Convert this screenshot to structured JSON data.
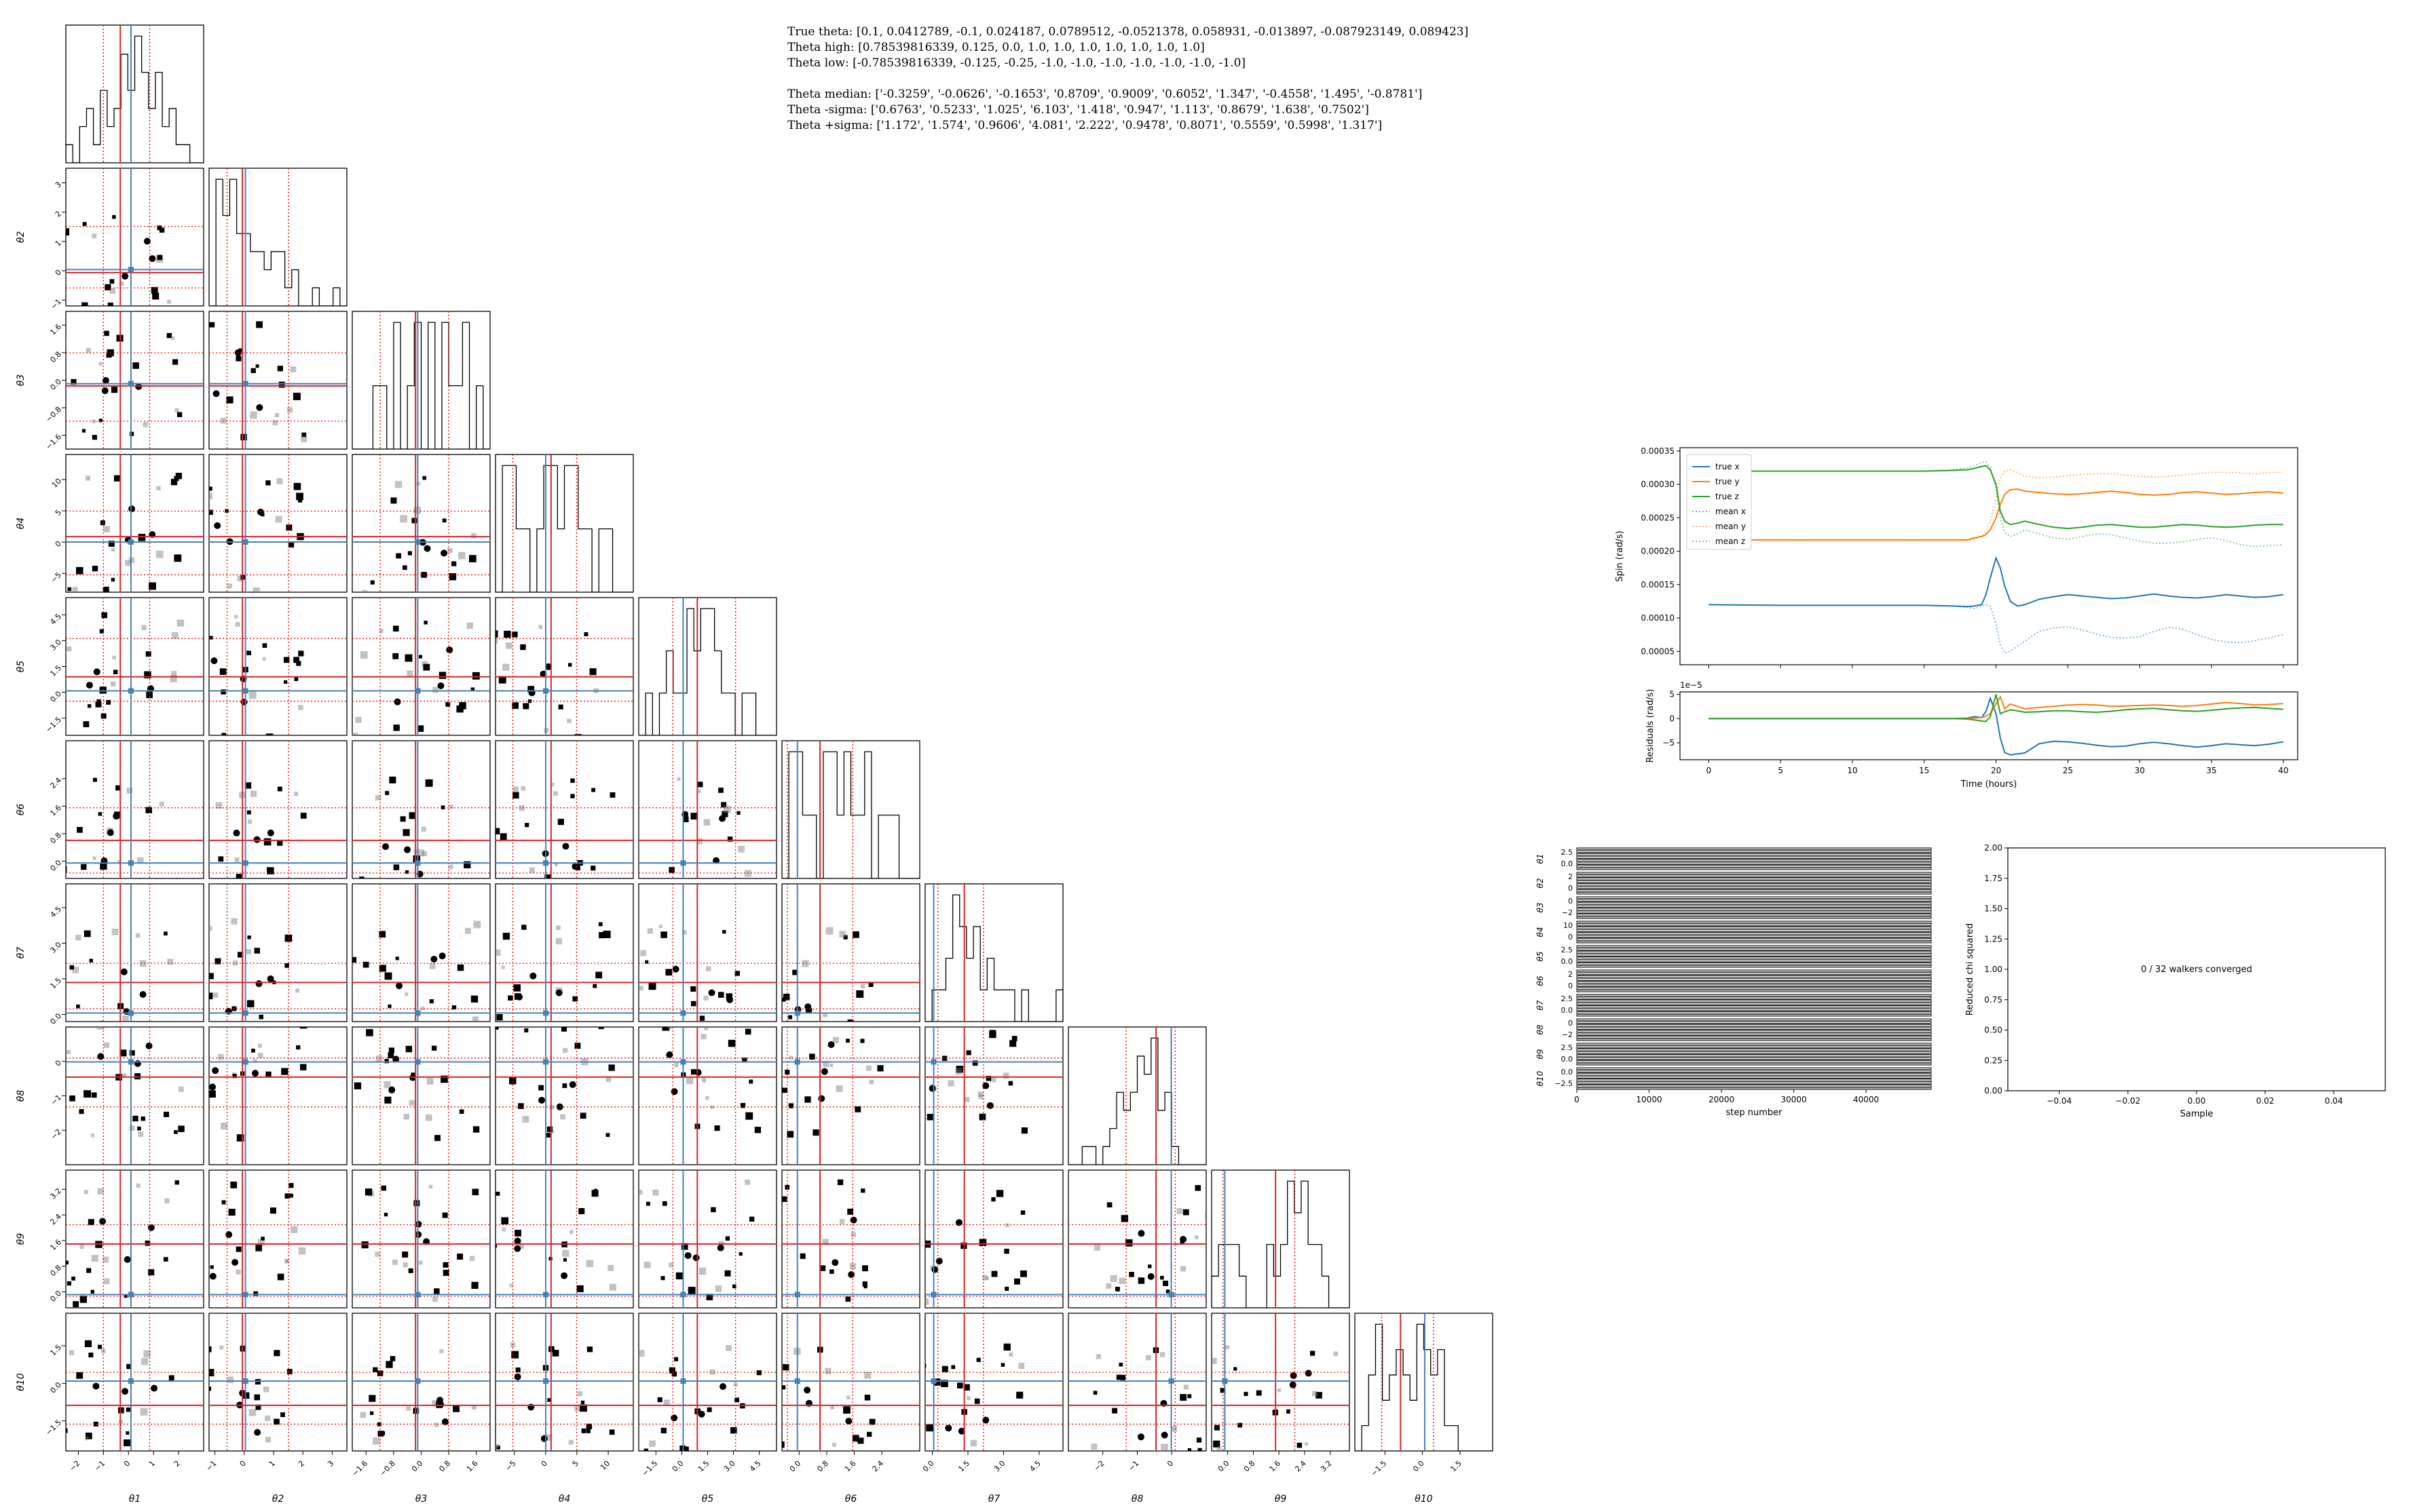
{
  "info": {
    "true_theta": "True theta: [0.1, 0.0412789, -0.1, 0.024187, 0.0789512, -0.0521378, 0.058931, -0.013897, -0.087923149, 0.089423]",
    "theta_high": "Theta high: [0.78539816339, 0.125, 0.0, 1.0, 1.0, 1.0, 1.0, 1.0, 1.0, 1.0]",
    "theta_low": "Theta low: [-0.78539816339, -0.125, -0.25, -1.0, -1.0, -1.0, -1.0, -1.0, -1.0, -1.0]",
    "theta_median": "Theta median: ['-0.3259', '-0.0626', '-0.1653', '0.8709', '0.9009', '0.6052', '1.347', '-0.4558', '1.495', '-0.8781']",
    "theta_minus": "Theta -sigma: ['0.6763', '0.5233', '1.025', '6.103', '1.418', '0.947', '1.113', '0.8679', '1.638', '0.7502']",
    "theta_plus": "Theta +sigma: ['1.172', '1.574', '0.9606', '4.081', '2.222', '0.9478', '0.8071', '0.5559', '0.5998', '1.317']"
  },
  "colors": {
    "median_line": "#d62728",
    "sigma_line": "#ff0000",
    "true_line": "#4682b4",
    "true_x": "#1f77b4",
    "true_y": "#ff7f0e",
    "true_z": "#2ca02c",
    "walker": "#333333"
  },
  "chart_data": [
    {
      "type": "corner",
      "parameters": [
        "θ1",
        "θ2",
        "θ3",
        "θ4",
        "θ5",
        "θ6",
        "θ7",
        "θ8",
        "θ9",
        "θ10"
      ],
      "ranges": [
        [
          -2.5,
          3
        ],
        [
          -1.2,
          3.5
        ],
        [
          -2,
          2
        ],
        [
          -8,
          14
        ],
        [
          -2.5,
          5.5
        ],
        [
          -0.5,
          3.5
        ],
        [
          -0.3,
          5.5
        ],
        [
          -3,
          1
        ],
        [
          -0.5,
          3.8
        ],
        [
          -2.7,
          2.8
        ]
      ],
      "ticks": [
        [
          "−2",
          "−1",
          "0",
          "1",
          "2"
        ],
        [
          "−1",
          "0",
          "1",
          "2",
          "3"
        ],
        [
          "−1.6",
          "−0.8",
          "0.0",
          "0.8",
          "1.6"
        ],
        [
          "−5",
          "0",
          "5",
          "10"
        ],
        [
          "−1.5",
          "0.0",
          "1.5",
          "3.0",
          "4.5"
        ],
        [
          "0.0",
          "0.8",
          "1.6",
          "2.4"
        ],
        [
          "0.0",
          "1.5",
          "3.0",
          "4.5"
        ],
        [
          "−2",
          "−1",
          "0"
        ],
        [
          "0.0",
          "0.8",
          "1.6",
          "2.4",
          "3.2"
        ],
        [
          "−1.5",
          "0.0",
          "1.5"
        ]
      ],
      "tick_values": [
        [
          -2,
          -1,
          0,
          1,
          2
        ],
        [
          -1,
          0,
          1,
          2,
          3
        ],
        [
          -1.6,
          -0.8,
          0,
          0.8,
          1.6
        ],
        [
          -5,
          0,
          5,
          10
        ],
        [
          -1.5,
          0,
          1.5,
          3,
          4.5
        ],
        [
          0,
          0.8,
          1.6,
          2.4
        ],
        [
          0,
          1.5,
          3,
          4.5
        ],
        [
          -2,
          -1,
          0
        ],
        [
          0,
          0.8,
          1.6,
          2.4,
          3.2
        ],
        [
          -1.5,
          0,
          1.5
        ]
      ],
      "true_values": [
        0.1,
        0.0412789,
        -0.1,
        0.024187,
        0.0789512,
        -0.0521378,
        0.058931,
        -0.013897,
        -0.087923149,
        0.089423
      ],
      "median": [
        -0.3259,
        -0.0626,
        -0.1653,
        0.8709,
        0.9009,
        0.6052,
        1.347,
        -0.4558,
        1.495,
        -0.8781
      ],
      "minus_sigma": [
        0.6763,
        0.5233,
        1.025,
        6.103,
        1.418,
        0.947,
        1.113,
        0.8679,
        1.638,
        0.7502
      ],
      "plus_sigma": [
        1.172,
        1.574,
        0.9606,
        4.081,
        2.222,
        0.9478,
        0.8071,
        0.5559,
        0.5998,
        1.317
      ],
      "histograms": [
        [
          1,
          0,
          2,
          3,
          1,
          4,
          2,
          3,
          6,
          4,
          7,
          5,
          3,
          5,
          2,
          3,
          1,
          1,
          0,
          0
        ],
        [
          0,
          7,
          5,
          7,
          4,
          4,
          3,
          3,
          2,
          3,
          3,
          1,
          2,
          0,
          0,
          1,
          0,
          0,
          1,
          0
        ],
        [
          0,
          0,
          0,
          1,
          1,
          0,
          2,
          0,
          1,
          2,
          0,
          2,
          0,
          2,
          1,
          1,
          2,
          0,
          1,
          0
        ],
        [
          0,
          2,
          2,
          1,
          1,
          0,
          1,
          2,
          2,
          1,
          2,
          2,
          1,
          1,
          0,
          1,
          1,
          0,
          0,
          0
        ],
        [
          0,
          1,
          0,
          1,
          2,
          1,
          1,
          3,
          2,
          3,
          3,
          2,
          1,
          1,
          0,
          1,
          1,
          0,
          0,
          0
        ],
        [
          0,
          2,
          2,
          1,
          1,
          0,
          2,
          2,
          1,
          2,
          1,
          1,
          2,
          0,
          1,
          1,
          1,
          0,
          0,
          0
        ],
        [
          0,
          1,
          1,
          2,
          4,
          3,
          2,
          3,
          1,
          2,
          1,
          1,
          1,
          0,
          1,
          0,
          0,
          0,
          0,
          1
        ],
        [
          0,
          0,
          1,
          1,
          0,
          1,
          2,
          4,
          3,
          4,
          6,
          5,
          7,
          3,
          4,
          1,
          0,
          0,
          0,
          0
        ],
        [
          1,
          2,
          2,
          2,
          1,
          0,
          0,
          0,
          2,
          1,
          2,
          4,
          3,
          4,
          2,
          2,
          1,
          0,
          0,
          0
        ],
        [
          0,
          1,
          3,
          5,
          2,
          3,
          4,
          3,
          2,
          5,
          4,
          3,
          4,
          1,
          1,
          0,
          0,
          0,
          0,
          0
        ]
      ]
    },
    {
      "type": "line",
      "xlabel": "Time (hours)",
      "ylabel": "Spin (rad/s)",
      "xlim": [
        -2,
        41
      ],
      "ylim": [
        3e-05,
        0.000355
      ],
      "yticks": [
        "0.00005",
        "0.00010",
        "0.00015",
        "0.00020",
        "0.00025",
        "0.00030",
        "0.00035"
      ],
      "ytick_values": [
        5e-05,
        0.0001,
        0.00015,
        0.0002,
        0.00025,
        0.0003,
        0.00035
      ],
      "legend": [
        "true x",
        "true y",
        "true z",
        "mean x",
        "mean y",
        "mean z"
      ],
      "x": [
        0,
        5,
        10,
        15,
        17,
        18,
        18.5,
        19,
        19.3,
        19.6,
        20,
        20.3,
        20.6,
        21,
        21.5,
        22,
        23,
        24,
        25,
        26,
        27,
        28,
        29,
        30,
        31,
        32,
        33,
        34,
        35,
        36,
        37,
        38,
        39,
        40
      ],
      "series": [
        {
          "name": "true x",
          "style": "solid",
          "values": [
            0.00012,
            0.000119,
            0.000119,
            0.000119,
            0.000118,
            0.000117,
            0.000118,
            0.00012,
            0.000135,
            0.00016,
            0.00019,
            0.000175,
            0.000148,
            0.000125,
            0.000118,
            0.00012,
            0.000128,
            0.000132,
            0.000135,
            0.000133,
            0.000131,
            0.000129,
            0.00013,
            0.000133,
            0.000136,
            0.000133,
            0.000131,
            0.00013,
            0.000132,
            0.000135,
            0.000133,
            0.000131,
            0.000132,
            0.000135
          ]
        },
        {
          "name": "true y",
          "style": "solid",
          "values": [
            0.000217,
            0.000217,
            0.000217,
            0.000217,
            0.000217,
            0.000217,
            0.00022,
            0.000222,
            0.000225,
            0.000232,
            0.00025,
            0.00027,
            0.000285,
            0.000292,
            0.000293,
            0.00029,
            0.000288,
            0.000286,
            0.000285,
            0.000286,
            0.000288,
            0.00029,
            0.000288,
            0.000285,
            0.000284,
            0.000285,
            0.000288,
            0.000289,
            0.000287,
            0.000285,
            0.000286,
            0.000288,
            0.000289,
            0.000287
          ]
        },
        {
          "name": "true z",
          "style": "solid",
          "values": [
            0.00032,
            0.00032,
            0.00032,
            0.00032,
            0.000321,
            0.000322,
            0.000324,
            0.000327,
            0.000328,
            0.000322,
            0.0003,
            0.00026,
            0.000245,
            0.00024,
            0.000242,
            0.000245,
            0.00024,
            0.000236,
            0.000234,
            0.000236,
            0.000239,
            0.00024,
            0.000238,
            0.000236,
            0.000236,
            0.000238,
            0.00024,
            0.000239,
            0.000237,
            0.000236,
            0.000237,
            0.000239,
            0.00024,
            0.00024
          ]
        },
        {
          "name": "mean x",
          "style": "dotted",
          "values": [
            0.00012,
            0.000119,
            0.000119,
            0.000119,
            0.000118,
            0.000116,
            0.000114,
            0.000118,
            0.00012,
            0.000118,
            9e-05,
            6e-05,
            4.8e-05,
            5e-05,
            5.8e-05,
            6.5e-05,
            8e-05,
            8.5e-05,
            8.7e-05,
            8.2e-05,
            7.6e-05,
            7.1e-05,
            7e-05,
            7.2e-05,
            8e-05,
            8.6e-05,
            8.3e-05,
            7.5e-05,
            6.8e-05,
            6.4e-05,
            6.3e-05,
            6.6e-05,
            7e-05,
            7.5e-05
          ]
        },
        {
          "name": "mean y",
          "style": "dotted",
          "values": [
            0.000217,
            0.000217,
            0.000217,
            0.000217,
            0.000217,
            0.000216,
            0.000218,
            0.000222,
            0.00023,
            0.000245,
            0.00028,
            0.00031,
            0.00032,
            0.000322,
            0.000318,
            0.000312,
            0.00031,
            0.000311,
            0.000313,
            0.000315,
            0.000316,
            0.000316,
            0.000314,
            0.000312,
            0.000311,
            0.000312,
            0.000314,
            0.000316,
            0.000318,
            0.000318,
            0.000317,
            0.000316,
            0.000318,
            0.000318
          ]
        },
        {
          "name": "mean z",
          "style": "dotted",
          "values": [
            0.00032,
            0.00032,
            0.00032,
            0.00032,
            0.000322,
            0.000325,
            0.000328,
            0.000333,
            0.000334,
            0.000326,
            0.000295,
            0.00025,
            0.000228,
            0.000222,
            0.000226,
            0.000232,
            0.000226,
            0.00022,
            0.000218,
            0.000222,
            0.000226,
            0.000225,
            0.00022,
            0.000215,
            0.000212,
            0.000212,
            0.000214,
            0.000218,
            0.00022,
            0.000216,
            0.00021,
            0.000207,
            0.000208,
            0.00021
          ]
        }
      ]
    },
    {
      "type": "line",
      "xlabel": "Time (hours)",
      "ylabel": "Residuals (rad/s)",
      "offset_label": "1e−5",
      "xlim": [
        -2,
        41
      ],
      "ylim": [
        -8.5,
        5.5
      ],
      "xticks": [
        "0",
        "5",
        "10",
        "15",
        "20",
        "25",
        "30",
        "35",
        "40"
      ],
      "xtick_values": [
        0,
        5,
        10,
        15,
        20,
        25,
        30,
        35,
        40
      ],
      "yticks": [
        "−5",
        "0",
        "5"
      ],
      "ytick_values": [
        -5,
        0,
        5
      ],
      "x": [
        0,
        5,
        10,
        15,
        17,
        18,
        18.5,
        19,
        19.3,
        19.6,
        20,
        20.3,
        20.6,
        21,
        21.5,
        22,
        23,
        24,
        25,
        26,
        27,
        28,
        29,
        30,
        31,
        32,
        33,
        34,
        35,
        36,
        37,
        38,
        39,
        40
      ],
      "series": [
        {
          "name": "x",
          "values": [
            0,
            0,
            0,
            0,
            0,
            0.1,
            0.4,
            0.2,
            1.5,
            4.2,
            1,
            -4,
            -7,
            -7.5,
            -7.3,
            -7.1,
            -5.2,
            -4.7,
            -4.8,
            -5.1,
            -5.5,
            -5.8,
            -5.7,
            -5.2,
            -4.9,
            -5.2,
            -5.6,
            -5.9,
            -5.6,
            -5.2,
            -5.4,
            -5.6,
            -5.3,
            -4.8
          ]
        },
        {
          "name": "y",
          "values": [
            0,
            0,
            0,
            0,
            0,
            0,
            0.1,
            0.2,
            0.5,
            1,
            3,
            4.5,
            2,
            3,
            2.5,
            2,
            2.3,
            2.5,
            2.8,
            2.9,
            2.8,
            2.5,
            2.6,
            2.7,
            2.8,
            2.7,
            2.5,
            2.7,
            3,
            3.3,
            3.1,
            2.8,
            2.9,
            3.1
          ]
        },
        {
          "name": "z",
          "values": [
            0,
            0,
            0,
            0,
            0,
            -0.1,
            -0.3,
            -0.5,
            -0.6,
            0.4,
            5,
            1,
            1.4,
            1.8,
            1.6,
            1.3,
            1.4,
            1.6,
            1.6,
            1.4,
            1.3,
            1.5,
            1.8,
            2,
            2.1,
            1.8,
            1.6,
            1.5,
            1.7,
            2,
            2.2,
            2.3,
            2.1,
            1.9
          ]
        }
      ]
    },
    {
      "type": "trace",
      "xlabel": "step number",
      "xlim": [
        0,
        49000
      ],
      "xticks": [
        "0",
        "10000",
        "20000",
        "30000",
        "40000"
      ],
      "xtick_values": [
        0,
        10000,
        20000,
        30000,
        40000
      ],
      "rows": [
        {
          "label": "θ1",
          "yticks": [
            "2.5",
            "0.0"
          ]
        },
        {
          "label": "θ2",
          "yticks": [
            "2",
            "0"
          ]
        },
        {
          "label": "θ3",
          "yticks": [
            "0",
            "−2"
          ]
        },
        {
          "label": "θ4",
          "yticks": [
            "10",
            "0"
          ]
        },
        {
          "label": "θ5",
          "yticks": [
            "2.5",
            "0.0"
          ]
        },
        {
          "label": "θ6",
          "yticks": [
            "2",
            "0"
          ]
        },
        {
          "label": "θ7",
          "yticks": [
            "2.5",
            "0.0"
          ]
        },
        {
          "label": "θ8",
          "yticks": [
            "0",
            "−2"
          ]
        },
        {
          "label": "θ9",
          "yticks": [
            "2.5",
            "0.0"
          ]
        },
        {
          "label": "θ10",
          "yticks": [
            "0.0",
            "−2.5"
          ]
        }
      ]
    },
    {
      "type": "scatter",
      "xlabel": "Sample",
      "ylabel": "Reduced chi squared",
      "xlim": [
        -0.055,
        0.055
      ],
      "ylim": [
        0,
        2
      ],
      "xticks": [
        "−0.04",
        "−0.02",
        "0.00",
        "0.02",
        "0.04"
      ],
      "xtick_values": [
        -0.04,
        -0.02,
        0,
        0.02,
        0.04
      ],
      "yticks": [
        "0.00",
        "0.25",
        "0.50",
        "0.75",
        "1.00",
        "1.25",
        "1.50",
        "1.75",
        "2.00"
      ],
      "ytick_values": [
        0,
        0.25,
        0.5,
        0.75,
        1,
        1.25,
        1.5,
        1.75,
        2
      ],
      "annotation": "0 / 32 walkers converged"
    }
  ]
}
